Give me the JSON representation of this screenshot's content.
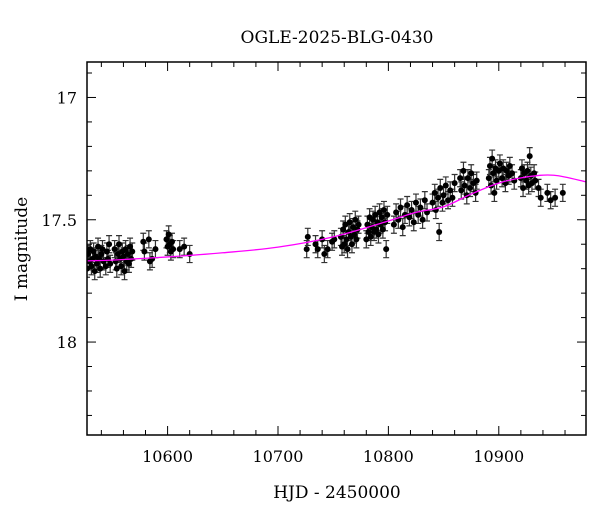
{
  "chart_data": {
    "type": "scatter",
    "title": "OGLE-2025-BLG-0430",
    "xlabel": "HJD - 2450000",
    "ylabel": "I magnitude",
    "xlim": [
      10527,
      10979
    ],
    "ylim": [
      18.38,
      16.855
    ],
    "y_inverted": true,
    "xticks": [
      10600,
      10700,
      10800,
      10900
    ],
    "xtick_labels": [
      "10600",
      "10700",
      "10800",
      "10900"
    ],
    "x_minor_step": 20,
    "yticks": [
      17,
      17.5,
      18
    ],
    "ytick_labels": [
      "17",
      "17.5",
      "18"
    ],
    "y_minor_step": 0.1,
    "grid": false,
    "colors": {
      "points": "#000000",
      "errorbars": "#333333",
      "model": "#ff00ff"
    },
    "series": [
      {
        "name": "data",
        "typical_error": 0.035,
        "points": [
          [
            10527,
            17.7
          ],
          [
            10528,
            17.64
          ],
          [
            10529,
            17.67
          ],
          [
            10530,
            17.62
          ],
          [
            10531,
            17.69
          ],
          [
            10532,
            17.66
          ],
          [
            10533,
            17.63
          ],
          [
            10534,
            17.71
          ],
          [
            10535,
            17.65
          ],
          [
            10536,
            17.68
          ],
          [
            10537,
            17.61
          ],
          [
            10538,
            17.66
          ],
          [
            10539,
            17.7
          ],
          [
            10540,
            17.64
          ],
          [
            10541,
            17.62
          ],
          [
            10542,
            17.67
          ],
          [
            10544,
            17.69
          ],
          [
            10545,
            17.63
          ],
          [
            10546,
            17.66
          ],
          [
            10547,
            17.6
          ],
          [
            10548,
            17.68
          ],
          [
            10552,
            17.62
          ],
          [
            10553,
            17.67
          ],
          [
            10554,
            17.7
          ],
          [
            10555,
            17.64
          ],
          [
            10556,
            17.6
          ],
          [
            10557,
            17.66
          ],
          [
            10558,
            17.69
          ],
          [
            10559,
            17.63
          ],
          [
            10560,
            17.65
          ],
          [
            10561,
            17.71
          ],
          [
            10562,
            17.62
          ],
          [
            10563,
            17.67
          ],
          [
            10564,
            17.64
          ],
          [
            10565,
            17.68
          ],
          [
            10566,
            17.61
          ],
          [
            10567,
            17.66
          ],
          [
            10568,
            17.63
          ],
          [
            10578,
            17.59
          ],
          [
            10579,
            17.63
          ],
          [
            10583,
            17.58
          ],
          [
            10584,
            17.67
          ],
          [
            10586,
            17.66
          ],
          [
            10589,
            17.62
          ],
          [
            10599,
            17.58
          ],
          [
            10600,
            17.61
          ],
          [
            10601,
            17.56
          ],
          [
            10602,
            17.6
          ],
          [
            10603,
            17.63
          ],
          [
            10604,
            17.59
          ],
          [
            10605,
            17.62
          ],
          [
            10611,
            17.62
          ],
          [
            10615,
            17.61
          ],
          [
            10620,
            17.64
          ],
          [
            10726,
            17.62
          ],
          [
            10727,
            17.57
          ],
          [
            10734,
            17.6
          ],
          [
            10736,
            17.62
          ],
          [
            10740,
            17.58
          ],
          [
            10742,
            17.64
          ],
          [
            10745,
            17.62
          ],
          [
            10749,
            17.59
          ],
          [
            10751,
            17.58
          ],
          [
            10757,
            17.57
          ],
          [
            10758,
            17.61
          ],
          [
            10759,
            17.54
          ],
          [
            10760,
            17.6
          ],
          [
            10761,
            17.52
          ],
          [
            10762,
            17.58
          ],
          [
            10763,
            17.62
          ],
          [
            10764,
            17.55
          ],
          [
            10765,
            17.51
          ],
          [
            10766,
            17.57
          ],
          [
            10767,
            17.6
          ],
          [
            10768,
            17.53
          ],
          [
            10769,
            17.56
          ],
          [
            10770,
            17.5
          ],
          [
            10771,
            17.58
          ],
          [
            10772,
            17.54
          ],
          [
            10773,
            17.52
          ],
          [
            10780,
            17.58
          ],
          [
            10781,
            17.52
          ],
          [
            10782,
            17.55
          ],
          [
            10783,
            17.49
          ],
          [
            10784,
            17.57
          ],
          [
            10785,
            17.53
          ],
          [
            10786,
            17.5
          ],
          [
            10787,
            17.55
          ],
          [
            10788,
            17.48
          ],
          [
            10789,
            17.54
          ],
          [
            10790,
            17.51
          ],
          [
            10791,
            17.56
          ],
          [
            10792,
            17.47
          ],
          [
            10793,
            17.52
          ],
          [
            10794,
            17.49
          ],
          [
            10795,
            17.54
          ],
          [
            10796,
            17.46
          ],
          [
            10797,
            17.51
          ],
          [
            10798,
            17.62
          ],
          [
            10799,
            17.48
          ],
          [
            10805,
            17.52
          ],
          [
            10807,
            17.47
          ],
          [
            10809,
            17.5
          ],
          [
            10811,
            17.45
          ],
          [
            10813,
            17.53
          ],
          [
            10815,
            17.48
          ],
          [
            10817,
            17.44
          ],
          [
            10819,
            17.49
          ],
          [
            10821,
            17.46
          ],
          [
            10823,
            17.51
          ],
          [
            10825,
            17.43
          ],
          [
            10827,
            17.48
          ],
          [
            10829,
            17.45
          ],
          [
            10831,
            17.5
          ],
          [
            10833,
            17.42
          ],
          [
            10835,
            17.47
          ],
          [
            10840,
            17.43
          ],
          [
            10842,
            17.39
          ],
          [
            10843,
            17.46
          ],
          [
            10845,
            17.41
          ],
          [
            10846,
            17.55
          ],
          [
            10847,
            17.37
          ],
          [
            10849,
            17.43
          ],
          [
            10850,
            17.4
          ],
          [
            10852,
            17.36
          ],
          [
            10854,
            17.42
          ],
          [
            10856,
            17.38
          ],
          [
            10858,
            17.41
          ],
          [
            10860,
            17.35
          ],
          [
            10865,
            17.33
          ],
          [
            10866,
            17.38
          ],
          [
            10868,
            17.3
          ],
          [
            10869,
            17.36
          ],
          [
            10871,
            17.4
          ],
          [
            10872,
            17.33
          ],
          [
            10874,
            17.37
          ],
          [
            10875,
            17.31
          ],
          [
            10877,
            17.35
          ],
          [
            10879,
            17.39
          ],
          [
            10880,
            17.34
          ],
          [
            10891,
            17.33
          ],
          [
            10892,
            17.28
          ],
          [
            10893,
            17.36
          ],
          [
            10894,
            17.25
          ],
          [
            10895,
            17.31
          ],
          [
            10896,
            17.39
          ],
          [
            10897,
            17.29
          ],
          [
            10898,
            17.34
          ],
          [
            10900,
            17.3
          ],
          [
            10901,
            17.27
          ],
          [
            10903,
            17.33
          ],
          [
            10904,
            17.29
          ],
          [
            10906,
            17.35
          ],
          [
            10907,
            17.3
          ],
          [
            10909,
            17.32
          ],
          [
            10910,
            17.28
          ],
          [
            10912,
            17.31
          ],
          [
            10914,
            17.34
          ],
          [
            10920,
            17.33
          ],
          [
            10921,
            17.29
          ],
          [
            10922,
            17.37
          ],
          [
            10923,
            17.31
          ],
          [
            10925,
            17.34
          ],
          [
            10926,
            17.3
          ],
          [
            10927,
            17.36
          ],
          [
            10928,
            17.24
          ],
          [
            10929,
            17.32
          ],
          [
            10930,
            17.35
          ],
          [
            10932,
            17.31
          ],
          [
            10933,
            17.34
          ],
          [
            10936,
            17.37
          ],
          [
            10938,
            17.41
          ],
          [
            10944,
            17.39
          ],
          [
            10947,
            17.42
          ],
          [
            10951,
            17.41
          ],
          [
            10958,
            17.39
          ]
        ]
      },
      {
        "name": "model",
        "x": [
          10527,
          10550,
          10600,
          10650,
          10700,
          10750,
          10800,
          10825,
          10850,
          10875,
          10900,
          10925,
          10950,
          10979
        ],
        "y": [
          17.668,
          17.665,
          17.652,
          17.635,
          17.612,
          17.57,
          17.505,
          17.47,
          17.447,
          17.395,
          17.35,
          17.325,
          17.318,
          17.345
        ]
      }
    ]
  }
}
